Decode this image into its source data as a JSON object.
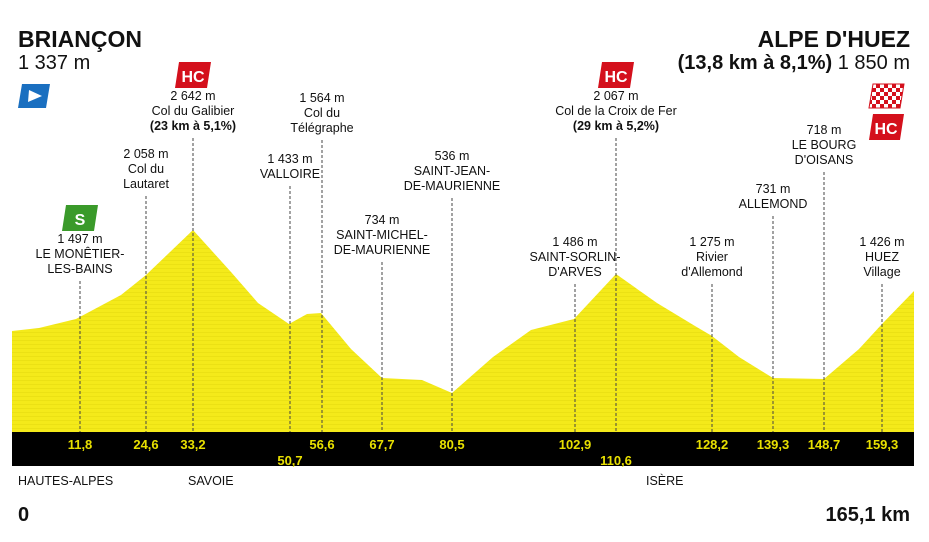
{
  "start": {
    "name": "BRIANÇON",
    "elevation": "1 337 m"
  },
  "finish": {
    "name": "ALPE D'HUEZ",
    "climb": "(13,8 km à 8,1%)",
    "elevation": "1 850 m",
    "badge": "HC"
  },
  "points": [
    {
      "elevation": "1 497 m",
      "name": [
        "LE MONÊTIER-",
        "LES-BAINS"
      ],
      "km": "11,8",
      "badge": "S"
    },
    {
      "elevation": "2 058 m",
      "name": [
        "Col du",
        "Lautaret"
      ],
      "km": "24,6"
    },
    {
      "elevation": "2 642 m",
      "name": [
        "Col du Galibier"
      ],
      "detail": "(23 km à 5,1%)",
      "km": "33,2",
      "badge": "HC"
    },
    {
      "elevation": "1 433 m",
      "name": [
        "VALLOIRE"
      ],
      "km": "50,7"
    },
    {
      "elevation": "1 564 m",
      "name": [
        "Col du",
        "Télégraphe"
      ],
      "km": "56,6"
    },
    {
      "elevation": "734 m",
      "name": [
        "SAINT-MICHEL-",
        "DE-MAURIENNE"
      ],
      "km": "67,7"
    },
    {
      "elevation": "536 m",
      "name": [
        "SAINT-JEAN-",
        "DE-MAURIENNE"
      ],
      "km": "80,5"
    },
    {
      "elevation": "1 486 m",
      "name": [
        "SAINT-SORLIN-",
        "D'ARVES"
      ],
      "km": "102,9"
    },
    {
      "elevation": "2 067 m",
      "name": [
        "Col de la Croix de Fer"
      ],
      "detail": "(29 km à 5,2%)",
      "km": "110,6",
      "badge": "HC"
    },
    {
      "elevation": "1 275 m",
      "name": [
        "Rivier",
        "d'Allemond"
      ],
      "km": "128,2"
    },
    {
      "elevation": "731 m",
      "name": [
        "ALLEMOND"
      ],
      "km": "139,3"
    },
    {
      "elevation": "718 m",
      "name": [
        "LE BOURG",
        "D'OISANS"
      ],
      "km": "148,7"
    },
    {
      "elevation": "1 426 m",
      "name": [
        "HUEZ",
        "Village"
      ],
      "km": "159,3"
    }
  ],
  "regions": [
    "HAUTES-ALPES",
    "SAVOIE",
    "ISÈRE"
  ],
  "distance": {
    "start": "0",
    "end": "165,1 km"
  }
}
